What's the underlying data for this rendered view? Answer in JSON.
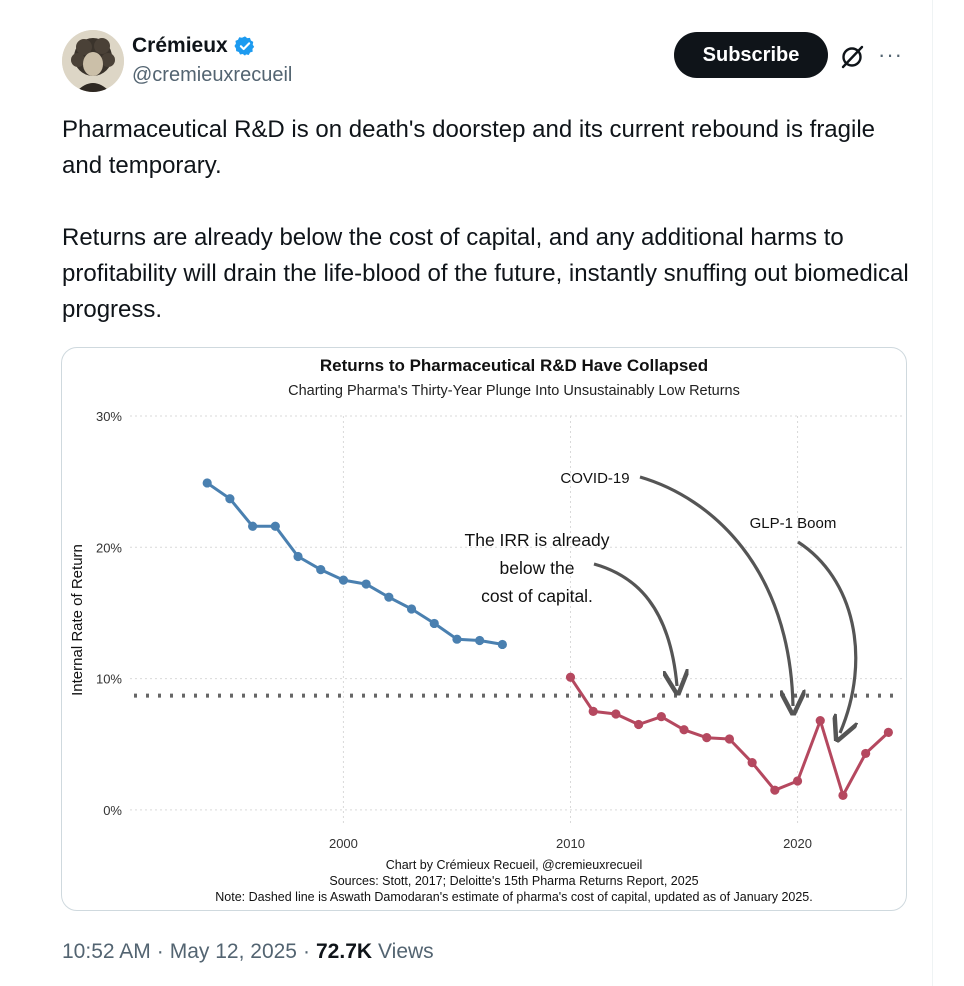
{
  "tweet": {
    "author_name": "Crémieux",
    "author_handle": "@cremieuxrecueil",
    "subscribe_label": "Subscribe",
    "more_label": "···",
    "paragraph_1": "Pharmaceutical R&D is on death's doorstep and its current rebound is fragile and temporary.",
    "paragraph_2": "Returns are already below the cost of capital, and any additional harms to profitability will drain the life-blood of the future, instantly snuffing out biomedical progress.",
    "time": "10:52 AM",
    "date": "May 12, 2025",
    "views_count": "72.7K",
    "views_label": "Views",
    "separator": "·"
  },
  "colors": {
    "pre2010_series": "#4a80b0",
    "post2010_series": "#b5485f",
    "cost_of_capital_line": "#666666",
    "verified_blue": "#1d9bf0"
  },
  "icons": [
    "verified-badge-icon",
    "grok-icon",
    "more-icon"
  ],
  "chart_data": {
    "type": "line",
    "title": "Returns to Pharmaceutical R&D Have Collapsed",
    "subtitle": "Charting Pharma's Thirty-Year Plunge Into Unsustainably Low Returns",
    "ylabel": "Internal Rate of Return",
    "xlabel": "",
    "xlim": [
      1990.6,
      2024.6
    ],
    "ylim": [
      -0.01,
      0.3
    ],
    "x_ticks": [
      2000,
      2010,
      2020
    ],
    "x_tick_labels": [
      "2000",
      "2010",
      "2020"
    ],
    "y_ticks": [
      0,
      0.1,
      0.2,
      0.3
    ],
    "y_tick_labels": [
      "0%",
      "10%",
      "20%",
      "30%"
    ],
    "grid": true,
    "series": [
      {
        "x": [
          1994,
          1995,
          1996,
          1997,
          1998,
          1999,
          2000,
          2001,
          2002,
          2003,
          2004,
          2005,
          2006,
          2007
        ],
        "y": [
          0.249,
          0.237,
          0.216,
          0.216,
          0.193,
          0.183,
          0.175,
          0.172,
          0.162,
          0.153,
          0.142,
          0.13,
          0.129,
          0.126
        ]
      },
      {
        "x": [
          2010,
          2011,
          2012,
          2013,
          2014,
          2015,
          2016,
          2017,
          2018,
          2019,
          2020,
          2021,
          2022,
          2023,
          2024
        ],
        "y": [
          0.101,
          0.075,
          0.073,
          0.065,
          0.071,
          0.061,
          0.055,
          0.054,
          0.036,
          0.015,
          0.022,
          0.068,
          0.011,
          0.043,
          0.059
        ]
      }
    ],
    "reference_line": {
      "y": 0.087,
      "style": "dotted"
    },
    "annotations": [
      {
        "lines": [
          "The IRR is already",
          "below the",
          "cost of capital."
        ],
        "x": 2016,
        "y": 0.087
      },
      {
        "lines": [
          "COVID-19"
        ],
        "x": 2021,
        "y": 0.08
      },
      {
        "lines": [
          "GLP-1 Boom"
        ],
        "x": 2023,
        "y": 0.055
      }
    ],
    "caption": [
      "Chart by Crémieux Recueil, @cremieuxrecueil",
      "Sources: Stott, 2017; Deloitte's 15th Pharma Returns Report, 2025",
      "Note: Dashed line is Aswath Damodaran's estimate of pharma's cost of capital, updated as of January 2025."
    ]
  }
}
